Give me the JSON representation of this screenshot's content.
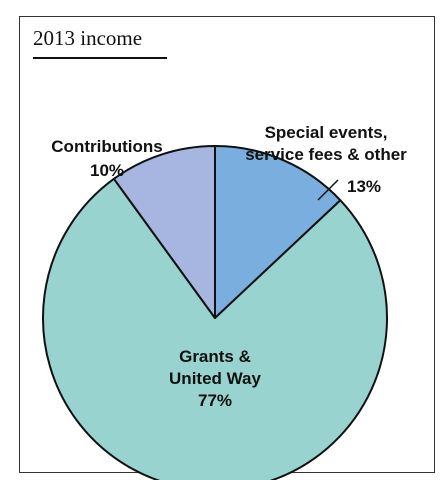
{
  "chart_data": {
    "type": "pie",
    "title": "2013 income",
    "slices": [
      {
        "label_lines": [
          "Special events,",
          "service fees & other"
        ],
        "pct_label": "13%",
        "value": 13,
        "color": "#7aaede"
      },
      {
        "label_lines": [
          "Grants &",
          "United Way"
        ],
        "pct_label": "77%",
        "value": 77,
        "color": "#99d3cf"
      },
      {
        "label_lines": [
          "Contributions"
        ],
        "pct_label": "10%",
        "value": 10,
        "color": "#a7b6e0"
      }
    ]
  }
}
